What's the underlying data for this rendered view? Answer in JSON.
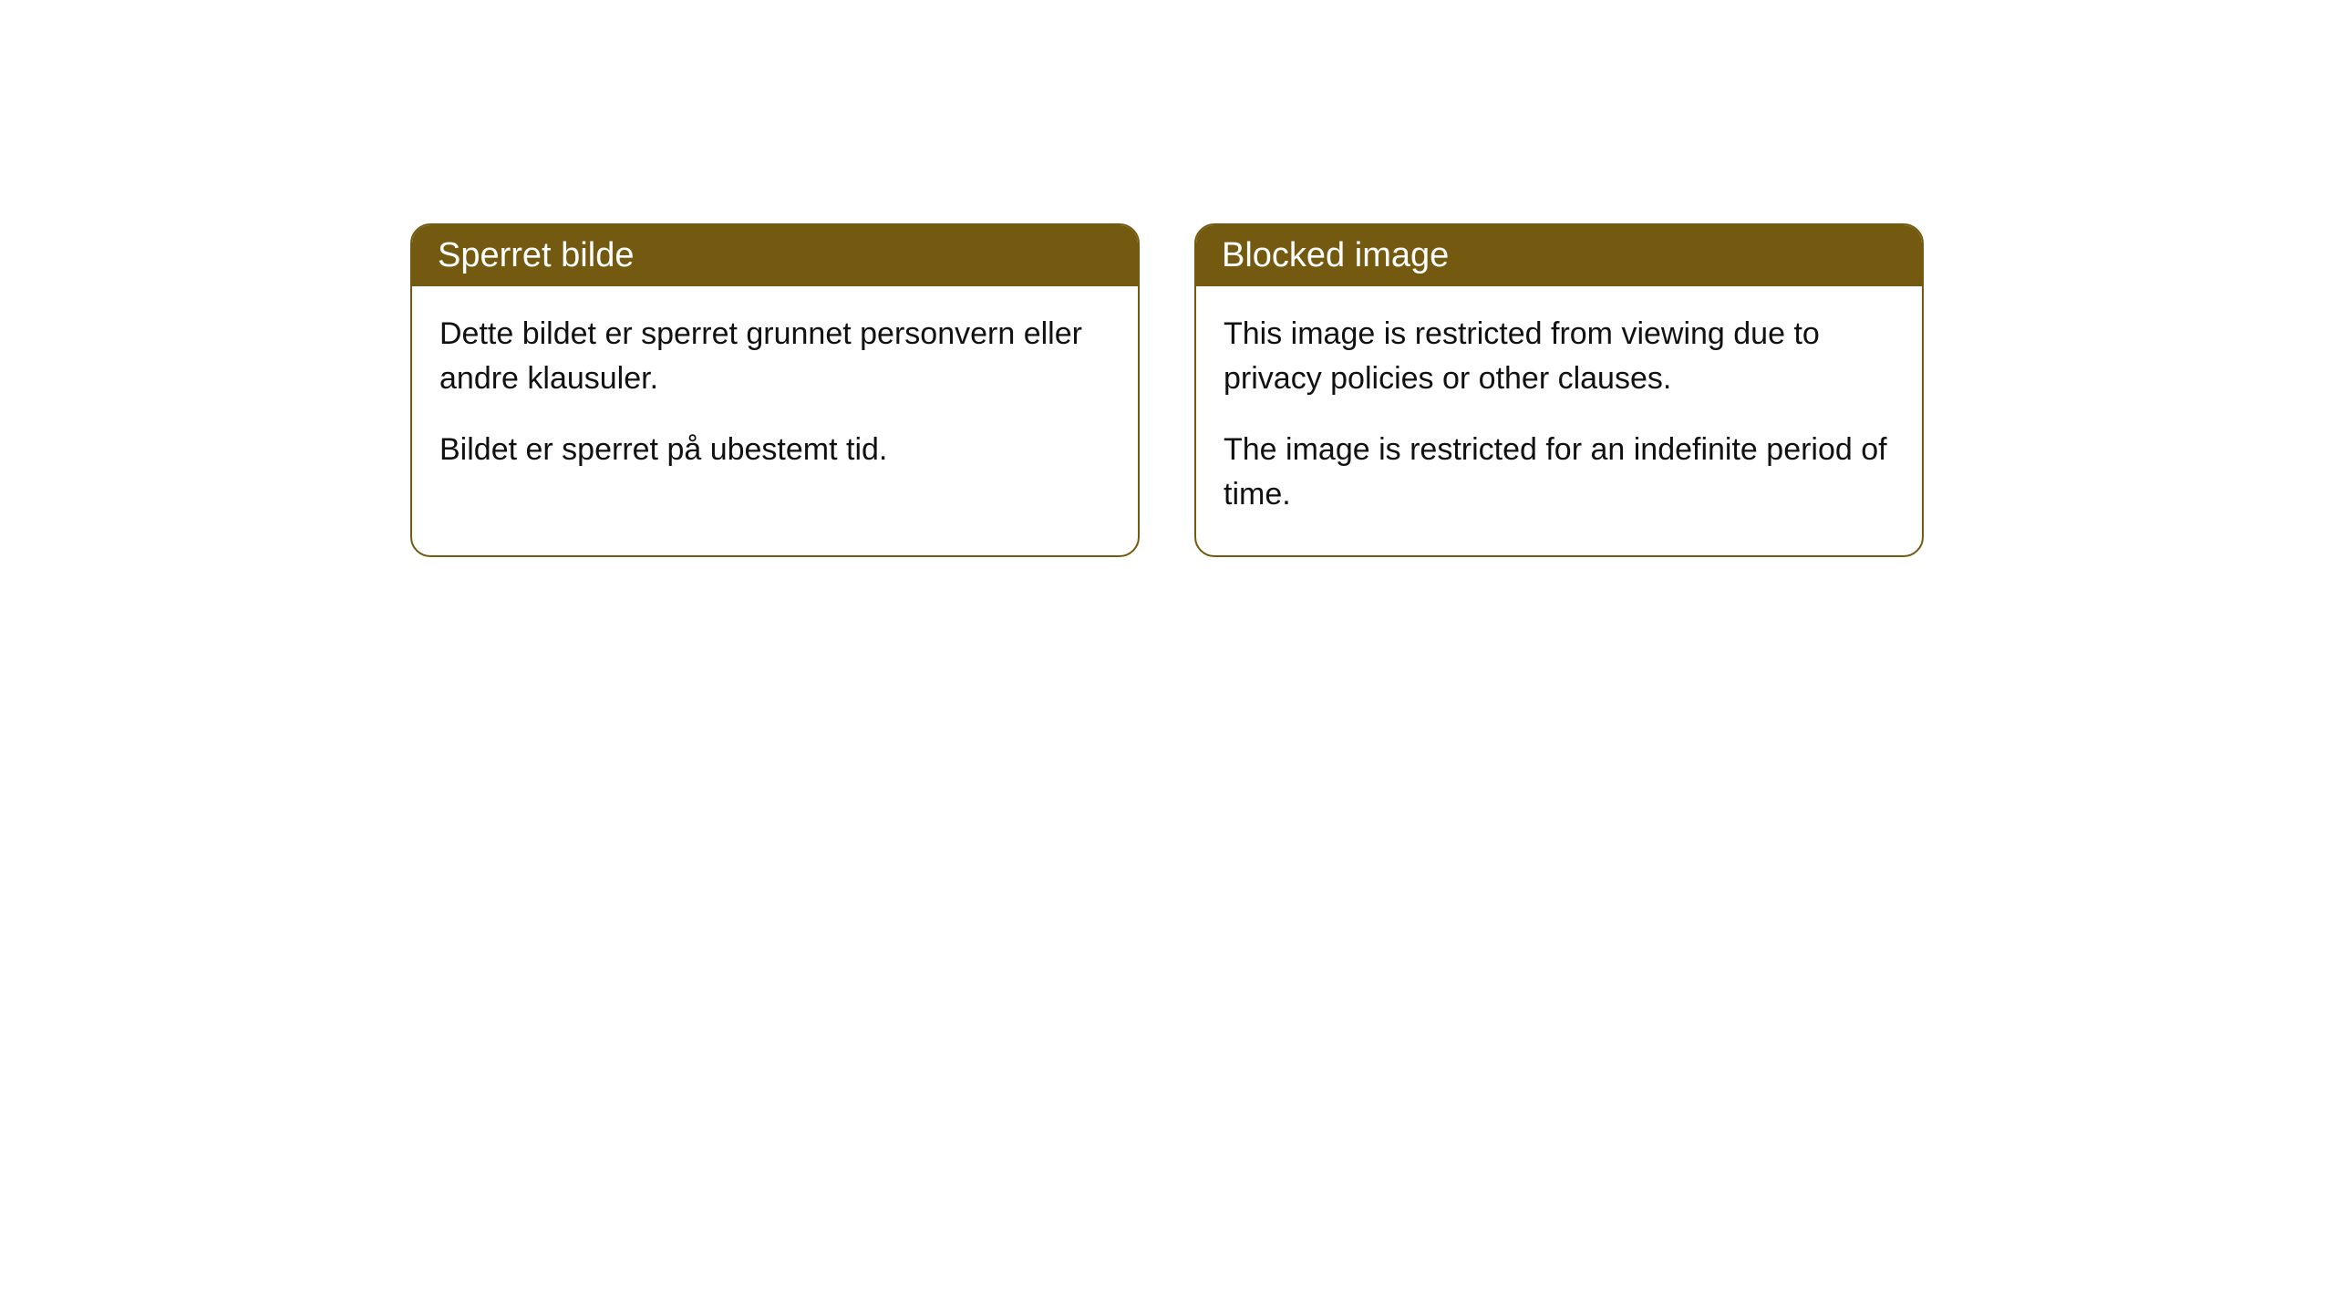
{
  "cards": [
    {
      "title": "Sperret bilde",
      "paragraph1": "Dette bildet er sperret grunnet personvern eller andre klausuler.",
      "paragraph2": "Bildet er sperret på ubestemt tid."
    },
    {
      "title": "Blocked image",
      "paragraph1": "This image is restricted from viewing due to privacy policies or other clauses.",
      "paragraph2": "The image is restricted for an indefinite period of time."
    }
  ],
  "styling": {
    "header_background_color": "#745a10",
    "header_text_color": "#ffffff",
    "card_border_color": "#745a10",
    "card_background_color": "#ffffff",
    "body_text_color": "#111111",
    "page_background_color": "#ffffff",
    "header_fontsize": 38,
    "body_fontsize": 34,
    "border_radius": 22,
    "border_width": 2
  }
}
